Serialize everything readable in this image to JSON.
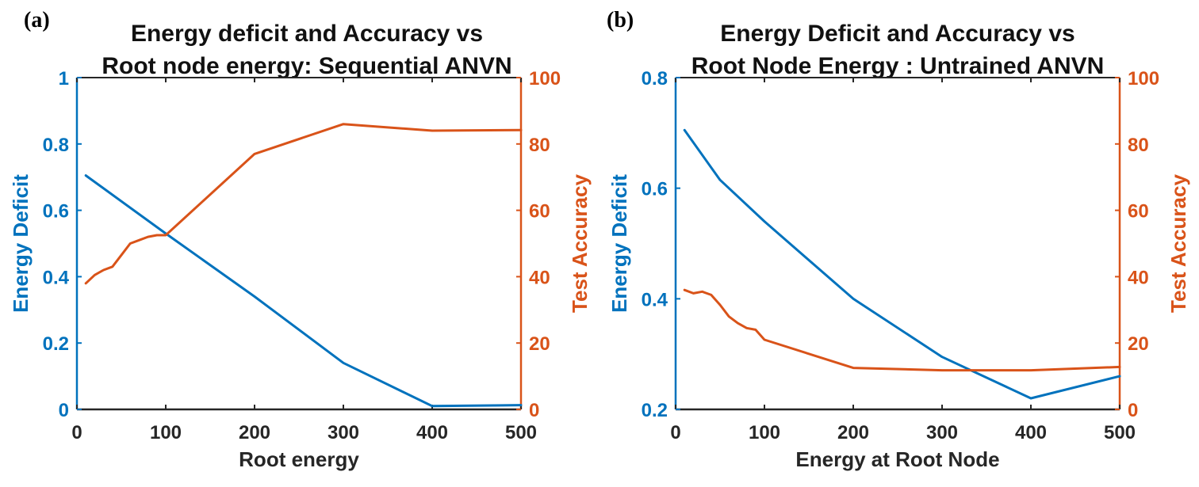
{
  "colors": {
    "left_axis": "#0072BD",
    "right_axis": "#D95319",
    "frame": "#262626"
  },
  "chart_data": [
    {
      "type": "line",
      "panel_label": "(a)",
      "title_lines": [
        "Energy deficit and Accuracy vs",
        "Root node energy: Sequential ANVN"
      ],
      "xlabel": "Root energy",
      "ylabel_left": "Energy Deficit",
      "ylabel_right": "Test Accuracy",
      "xlim": [
        0,
        500
      ],
      "ylim_left": [
        0,
        1
      ],
      "ylim_right": [
        0,
        100
      ],
      "xticks": [
        "0",
        "100",
        "200",
        "300",
        "400",
        "500"
      ],
      "yticks_left": [
        "0",
        "0.2",
        "0.4",
        "0.6",
        "0.8",
        "1"
      ],
      "yticks_right": [
        "0",
        "20",
        "40",
        "60",
        "80",
        "100"
      ],
      "series": [
        {
          "axis": "left",
          "x": [
            10,
            100,
            200,
            300,
            400,
            500
          ],
          "y": [
            0.705,
            0.53,
            0.34,
            0.14,
            0.01,
            0.013
          ]
        },
        {
          "axis": "right",
          "x": [
            10,
            20,
            30,
            40,
            50,
            60,
            70,
            80,
            90,
            100,
            200,
            300,
            400,
            500
          ],
          "y": [
            38,
            40.5,
            42,
            43,
            46.5,
            50,
            51,
            52,
            52.5,
            52.5,
            77,
            86,
            84,
            84.2
          ]
        }
      ]
    },
    {
      "type": "line",
      "panel_label": "(b)",
      "title_lines": [
        "Energy Deficit and Accuracy vs",
        "Root Node Energy : Untrained ANVN"
      ],
      "xlabel": "Energy at Root Node",
      "ylabel_left": "Energy Deficit",
      "ylabel_right": "Test Accuracy",
      "xlim": [
        0,
        500
      ],
      "ylim_left": [
        0.2,
        0.8
      ],
      "ylim_right": [
        0,
        100
      ],
      "xticks": [
        "0",
        "100",
        "200",
        "300",
        "400",
        "500"
      ],
      "yticks_left": [
        "0.2",
        "0.4",
        "0.6",
        "0.8"
      ],
      "yticks_right": [
        "0",
        "20",
        "40",
        "60",
        "80",
        "100"
      ],
      "series": [
        {
          "axis": "left",
          "x": [
            10,
            50,
            100,
            200,
            300,
            400,
            500
          ],
          "y": [
            0.705,
            0.615,
            0.54,
            0.4,
            0.295,
            0.22,
            0.26
          ]
        },
        {
          "axis": "right",
          "x": [
            10,
            20,
            30,
            40,
            50,
            60,
            70,
            80,
            90,
            100,
            200,
            300,
            400,
            500
          ],
          "y": [
            36,
            35,
            35.5,
            34.5,
            31.5,
            28,
            26,
            24.5,
            24,
            21,
            12.5,
            11.8,
            11.8,
            12.8
          ]
        }
      ]
    }
  ]
}
